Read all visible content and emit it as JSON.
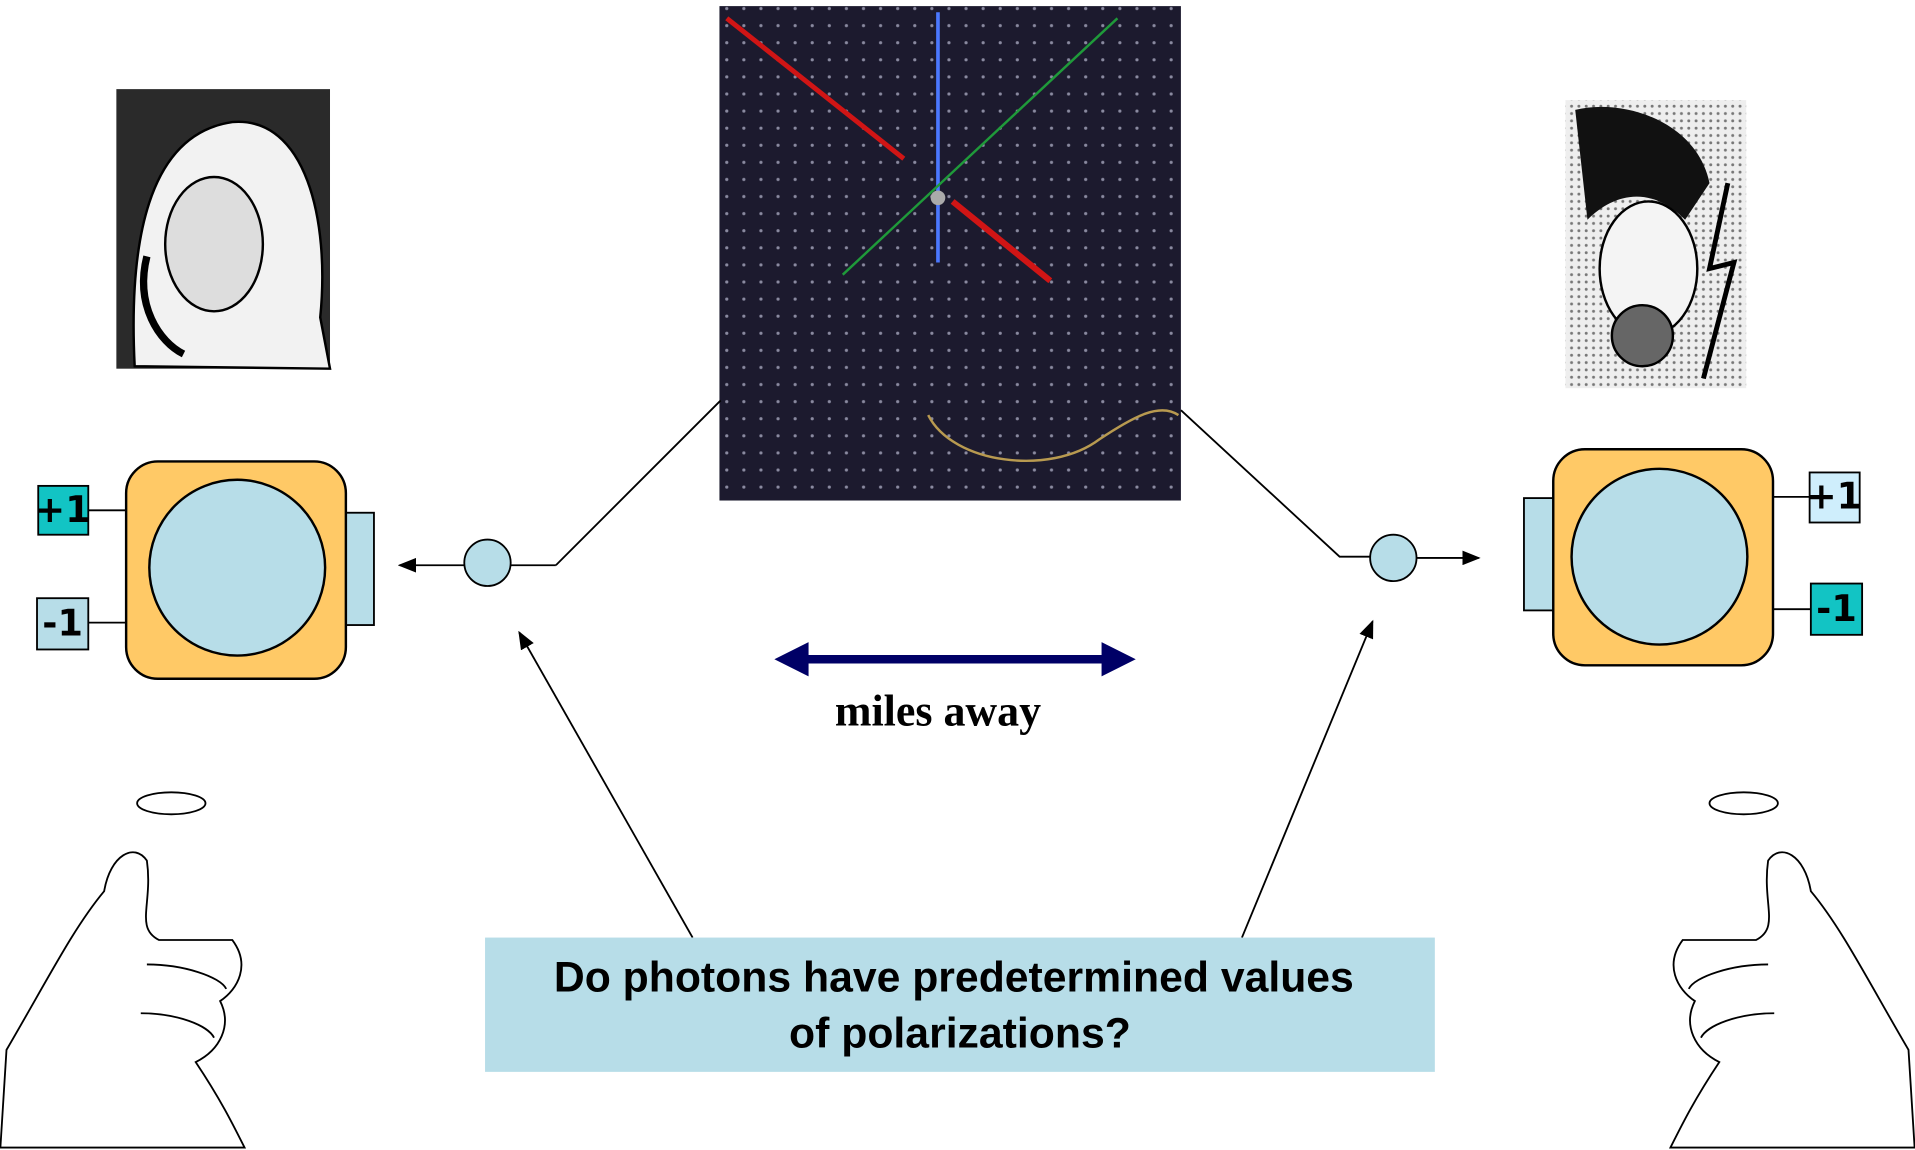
{
  "left_detector": {
    "plus": "+1",
    "minus": "-1"
  },
  "right_detector": {
    "plus": "+1",
    "minus": "-1"
  },
  "distance_label": "miles away",
  "question": [
    "Do photons have predetermined values",
    "of polarizations?"
  ]
}
